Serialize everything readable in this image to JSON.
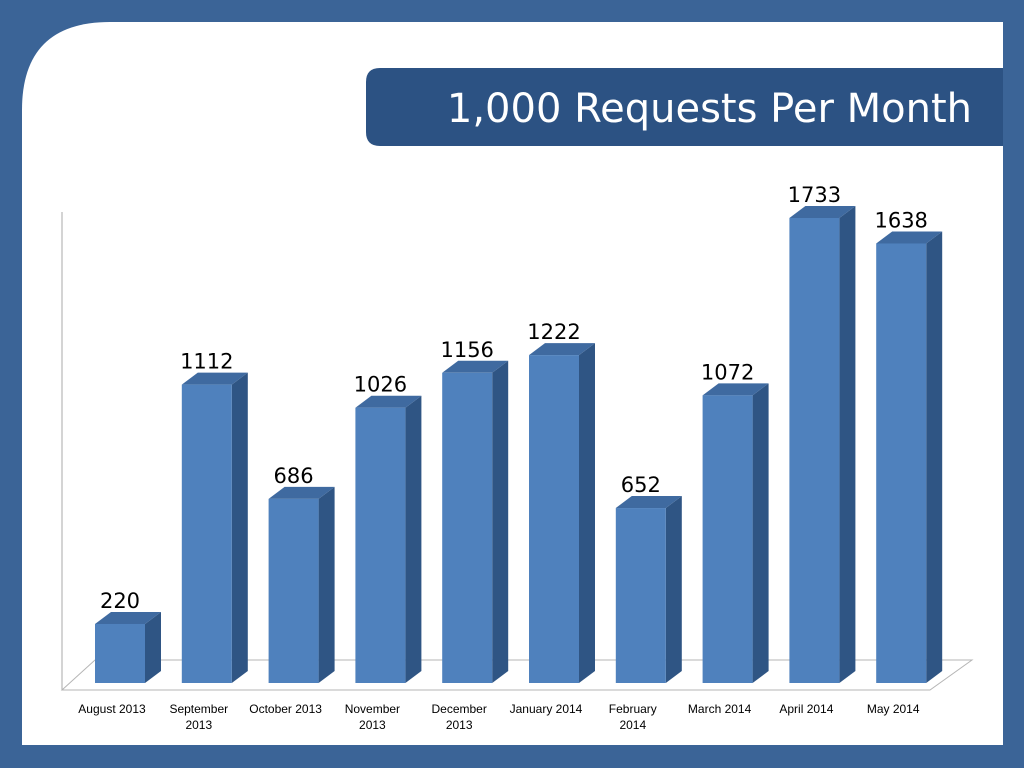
{
  "chart_data": {
    "type": "bar3d",
    "title": "1,000 Requests Per Month",
    "categories": [
      "August 2013",
      "September 2013",
      "October 2013",
      "November 2013",
      "December 2013",
      "January 2014",
      "February 2014",
      "March 2014",
      "April 2014",
      "May 2014"
    ],
    "values": [
      220,
      1112,
      686,
      1026,
      1156,
      1222,
      652,
      1072,
      1733,
      1638
    ],
    "color": "#4f81bd",
    "ylim": [
      0,
      1800
    ]
  }
}
